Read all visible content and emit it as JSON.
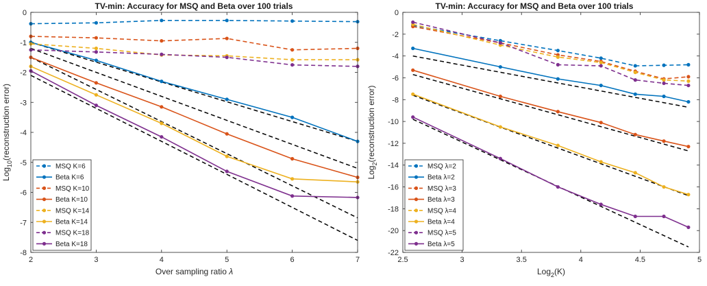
{
  "chart_data": [
    {
      "type": "line",
      "title": "TV-min: Accuracy for MSQ and Beta over 100 trials",
      "xlabel": "Over sampling ratio λ",
      "ylabel": "Log10(reconstruction error)",
      "xlim": [
        2,
        7
      ],
      "ylim": [
        -8,
        0
      ],
      "x_ticks": [
        "2",
        "3",
        "4",
        "5",
        "6",
        "7"
      ],
      "y_ticks": [
        "0",
        "-1",
        "-2",
        "-3",
        "-4",
        "-5",
        "-6",
        "-7",
        "-8"
      ],
      "grid": false,
      "legend_position": "bottom-left",
      "series": [
        {
          "name": "MSQ K=6",
          "color": "#0072BD",
          "dash": true,
          "x": [
            2,
            3,
            4,
            5,
            6,
            7
          ],
          "y": [
            -0.38,
            -0.35,
            -0.27,
            -0.27,
            -0.29,
            -0.31
          ]
        },
        {
          "name": "Beta K=6",
          "color": "#0072BD",
          "dash": false,
          "x": [
            2,
            3,
            4,
            5,
            6,
            7
          ],
          "y": [
            -1.0,
            -1.6,
            -2.3,
            -2.9,
            -3.5,
            -4.3
          ]
        },
        {
          "name": "MSQ K=10",
          "color": "#D95319",
          "dash": true,
          "x": [
            2,
            3,
            4,
            5,
            6,
            7
          ],
          "y": [
            -0.8,
            -0.85,
            -0.95,
            -0.87,
            -1.25,
            -1.2
          ]
        },
        {
          "name": "Beta K=10",
          "color": "#D95319",
          "dash": false,
          "x": [
            2,
            3,
            4,
            5,
            6,
            7
          ],
          "y": [
            -1.5,
            -2.35,
            -3.15,
            -4.05,
            -4.88,
            -5.5
          ]
        },
        {
          "name": "MSQ K=14",
          "color": "#EDB120",
          "dash": true,
          "x": [
            2,
            3,
            4,
            5,
            6,
            7
          ],
          "y": [
            -1.05,
            -1.2,
            -1.42,
            -1.45,
            -1.58,
            -1.58
          ]
        },
        {
          "name": "Beta K=14",
          "color": "#EDB120",
          "dash": false,
          "x": [
            2,
            3,
            4,
            5,
            6,
            7
          ],
          "y": [
            -1.8,
            -2.75,
            -3.7,
            -4.8,
            -5.55,
            -5.65
          ]
        },
        {
          "name": "MSQ K=18",
          "color": "#7E2F8E",
          "dash": true,
          "x": [
            2,
            3,
            4,
            5,
            6,
            7
          ],
          "y": [
            -1.25,
            -1.32,
            -1.4,
            -1.5,
            -1.75,
            -1.8
          ]
        },
        {
          "name": "Beta K=18",
          "color": "#7E2F8E",
          "dash": false,
          "x": [
            2,
            3,
            4,
            5,
            6,
            7
          ],
          "y": [
            -1.95,
            -3.1,
            -4.15,
            -5.3,
            -6.12,
            -6.17
          ]
        }
      ],
      "reference_lines": [
        {
          "x": [
            2,
            7
          ],
          "y": [
            -1.0,
            -4.3
          ]
        },
        {
          "x": [
            2,
            7
          ],
          "y": [
            -1.2,
            -5.2
          ]
        },
        {
          "x": [
            2,
            7
          ],
          "y": [
            -1.5,
            -6.85
          ]
        },
        {
          "x": [
            2,
            7
          ],
          "y": [
            -2.1,
            -7.6
          ]
        }
      ]
    },
    {
      "type": "line",
      "title": "TV-min: Accuracy for MSQ and Beta over 100 trials",
      "xlabel": "Log2(K)",
      "ylabel": "Log2(reconstruction error)",
      "xlim": [
        2.5,
        5
      ],
      "ylim": [
        -22,
        0
      ],
      "x_ticks": [
        "2.5",
        "3",
        "3.5",
        "4",
        "4.5",
        "5"
      ],
      "y_ticks": [
        "0",
        "-2",
        "-4",
        "-6",
        "-8",
        "-10",
        "-12",
        "-14",
        "-16",
        "-18",
        "-20",
        "-22"
      ],
      "grid": false,
      "legend_position": "bottom-left",
      "series": [
        {
          "name": "MSQ λ=2",
          "color": "#0072BD",
          "dash": true,
          "x": [
            2.585,
            3.322,
            3.807,
            4.17,
            4.459,
            4.7,
            4.907
          ],
          "y": [
            -1.2,
            -2.6,
            -3.5,
            -4.2,
            -4.9,
            -4.85,
            -4.8
          ]
        },
        {
          "name": "Beta λ=2",
          "color": "#0072BD",
          "dash": false,
          "x": [
            2.585,
            3.322,
            3.807,
            4.17,
            4.459,
            4.7,
            4.907
          ],
          "y": [
            -3.3,
            -5.0,
            -6.1,
            -6.7,
            -7.5,
            -7.7,
            -8.2
          ]
        },
        {
          "name": "MSQ λ=3",
          "color": "#D95319",
          "dash": true,
          "x": [
            2.585,
            3.322,
            3.807,
            4.17,
            4.459,
            4.7,
            4.907
          ],
          "y": [
            -1.3,
            -2.8,
            -3.9,
            -4.5,
            -5.4,
            -6.1,
            -5.9
          ]
        },
        {
          "name": "Beta λ=3",
          "color": "#D95319",
          "dash": false,
          "x": [
            2.585,
            3.322,
            3.807,
            4.17,
            4.459,
            4.7,
            4.907
          ],
          "y": [
            -5.3,
            -7.7,
            -9.1,
            -10.1,
            -11.2,
            -11.8,
            -12.3
          ]
        },
        {
          "name": "MSQ λ=4",
          "color": "#EDB120",
          "dash": true,
          "x": [
            2.585,
            3.322,
            3.807,
            4.17,
            4.459,
            4.7,
            4.907
          ],
          "y": [
            -1.1,
            -3.0,
            -4.1,
            -4.6,
            -5.5,
            -6.2,
            -6.3
          ]
        },
        {
          "name": "Beta λ=4",
          "color": "#EDB120",
          "dash": false,
          "x": [
            2.585,
            3.322,
            3.807,
            4.17,
            4.459,
            4.7,
            4.907
          ],
          "y": [
            -7.5,
            -10.5,
            -12.2,
            -13.7,
            -14.7,
            -16.0,
            -16.7
          ]
        },
        {
          "name": "MSQ λ=5",
          "color": "#7E2F8E",
          "dash": true,
          "x": [
            2.585,
            3.322,
            3.807,
            4.17,
            4.459,
            4.7,
            4.907
          ],
          "y": [
            -0.9,
            -2.8,
            -4.8,
            -4.9,
            -6.2,
            -6.5,
            -6.7
          ]
        },
        {
          "name": "Beta λ=5",
          "color": "#7E2F8E",
          "dash": false,
          "x": [
            2.585,
            3.322,
            3.807,
            4.17,
            4.459,
            4.7,
            4.907
          ],
          "y": [
            -9.6,
            -13.4,
            -16.0,
            -17.6,
            -18.7,
            -18.7,
            -19.7
          ]
        }
      ],
      "reference_lines": [
        {
          "x": [
            2.585,
            4.907
          ],
          "y": [
            -4.0,
            -8.7
          ]
        },
        {
          "x": [
            2.585,
            4.907
          ],
          "y": [
            -5.7,
            -12.7
          ]
        },
        {
          "x": [
            2.585,
            4.907
          ],
          "y": [
            -7.6,
            -16.8
          ]
        },
        {
          "x": [
            2.585,
            4.907
          ],
          "y": [
            -9.8,
            -21.5
          ]
        }
      ]
    }
  ]
}
